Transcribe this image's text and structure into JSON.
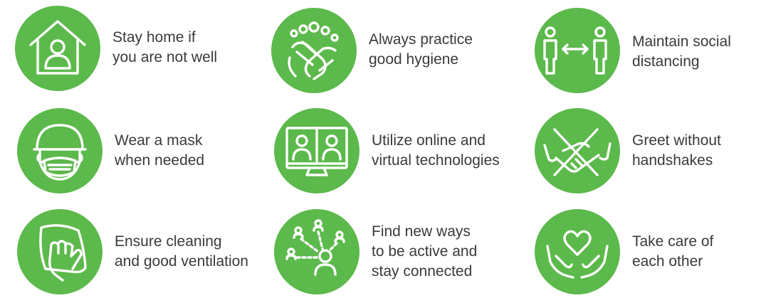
{
  "theme": {
    "circle_color": "#5cb94b",
    "text_color": "#3a3a3a",
    "background": "#ffffff"
  },
  "tips": [
    {
      "icon": "house-person-icon",
      "lines": [
        "Stay home if",
        "you are not well"
      ]
    },
    {
      "icon": "washing-hands-icon",
      "lines": [
        "Always practice",
        "good hygiene"
      ]
    },
    {
      "icon": "social-distancing-icon",
      "lines": [
        "Maintain social",
        "distancing"
      ]
    },
    {
      "icon": "face-mask-icon",
      "lines": [
        "Wear a mask",
        "when needed"
      ]
    },
    {
      "icon": "video-call-monitor-icon",
      "lines": [
        "Utilize online and",
        "virtual technologies"
      ]
    },
    {
      "icon": "no-handshake-icon",
      "lines": [
        "Greet without",
        "handshakes"
      ]
    },
    {
      "icon": "cleaning-cloth-hand-icon",
      "lines": [
        "Ensure cleaning",
        "and good ventilation"
      ]
    },
    {
      "icon": "connected-people-icon",
      "lines": [
        "Find new ways",
        "to be active and",
        "stay connected"
      ]
    },
    {
      "icon": "hands-heart-icon",
      "lines": [
        "Take care of",
        "each other"
      ]
    }
  ]
}
